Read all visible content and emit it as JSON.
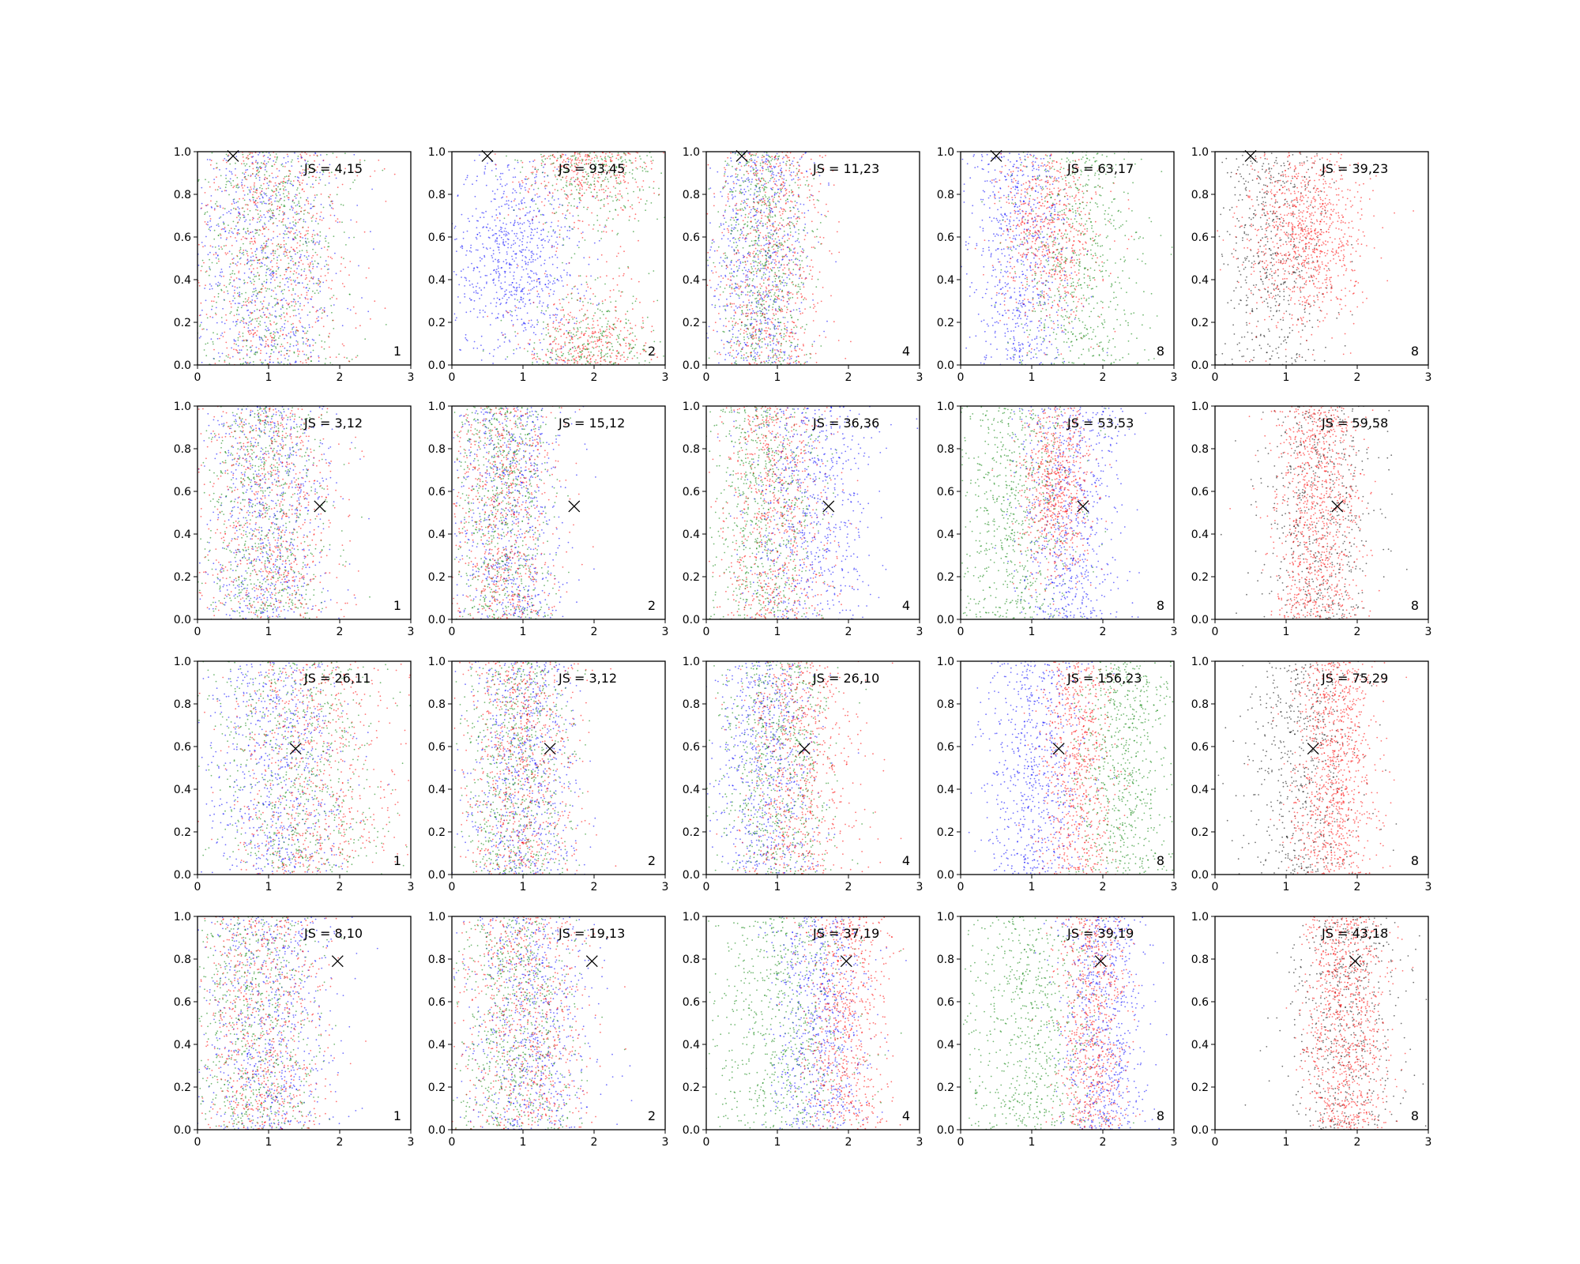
{
  "chart_data": {
    "type": "scatter",
    "layout": {
      "rows": 4,
      "cols": 5
    },
    "xlim": [
      0,
      3
    ],
    "ylim": [
      0,
      1
    ],
    "xticks": [
      "0",
      "1",
      "2",
      "3"
    ],
    "yticks": [
      "0.0",
      "0.2",
      "0.4",
      "0.6",
      "0.8",
      "1.0"
    ],
    "colors": {
      "blue": "#0000ff",
      "green": "#008000",
      "red": "#ff0000",
      "black": "#000000",
      "marker": "#000000"
    },
    "rows": [
      {
        "marker": {
          "x": 0.5,
          "y": 0.98
        },
        "panels": [
          {
            "js": "JS = 4,15",
            "k": "1",
            "clusters": [
              {
                "color": "blue",
                "cx": 0.95,
                "sx": 0.55,
                "weight": 1
              },
              {
                "color": "green",
                "cx": 1.0,
                "sx": 0.55,
                "weight": 1
              },
              {
                "color": "red",
                "cx": 1.05,
                "sx": 0.6,
                "weight": 1
              }
            ]
          },
          {
            "js": "JS = 93,45",
            "k": "2",
            "clusters": [
              {
                "color": "blue",
                "cx": 0.9,
                "sx": 0.45,
                "weight": 1.2,
                "ymode": "mid"
              },
              {
                "color": "red",
                "cx": 1.9,
                "sx": 0.45,
                "weight": 1,
                "ymode": "edges"
              },
              {
                "color": "green",
                "cx": 2.0,
                "sx": 0.5,
                "weight": 0.8,
                "ymode": "edges"
              }
            ]
          },
          {
            "js": "JS = 11,23",
            "k": "4",
            "clusters": [
              {
                "color": "blue",
                "cx": 0.75,
                "sx": 0.35,
                "weight": 1
              },
              {
                "color": "green",
                "cx": 0.8,
                "sx": 0.35,
                "weight": 1
              },
              {
                "color": "red",
                "cx": 0.9,
                "sx": 0.4,
                "weight": 1
              }
            ]
          },
          {
            "js": "JS = 63,17",
            "k": "8",
            "clusters": [
              {
                "color": "blue",
                "cx": 0.85,
                "sx": 0.35,
                "weight": 1
              },
              {
                "color": "red",
                "cx": 1.25,
                "sx": 0.35,
                "weight": 1,
                "ymode": "high"
              },
              {
                "color": "green",
                "cx": 1.7,
                "sx": 0.45,
                "weight": 0.9
              }
            ]
          },
          {
            "js": "JS = 39,23",
            "k": "8",
            "clusters": [
              {
                "color": "black",
                "cx": 0.8,
                "sx": 0.4,
                "weight": 0.8
              },
              {
                "color": "red",
                "cx": 1.25,
                "sx": 0.4,
                "weight": 1.4,
                "ymode": "high"
              }
            ]
          }
        ]
      },
      {
        "marker": {
          "x": 1.72,
          "y": 0.53
        },
        "panels": [
          {
            "js": "JS = 3,12",
            "k": "1",
            "clusters": [
              {
                "color": "blue",
                "cx": 1.0,
                "sx": 0.45,
                "weight": 1
              },
              {
                "color": "green",
                "cx": 0.9,
                "sx": 0.45,
                "weight": 1
              },
              {
                "color": "red",
                "cx": 1.0,
                "sx": 0.5,
                "weight": 1
              }
            ]
          },
          {
            "js": "JS = 15,12",
            "k": "2",
            "clusters": [
              {
                "color": "blue",
                "cx": 0.8,
                "sx": 0.4,
                "weight": 1
              },
              {
                "color": "green",
                "cx": 0.7,
                "sx": 0.35,
                "weight": 1
              },
              {
                "color": "red",
                "cx": 0.75,
                "sx": 0.4,
                "weight": 1
              }
            ]
          },
          {
            "js": "JS = 36,36",
            "k": "4",
            "clusters": [
              {
                "color": "green",
                "cx": 0.8,
                "sx": 0.4,
                "weight": 1
              },
              {
                "color": "red",
                "cx": 0.95,
                "sx": 0.4,
                "weight": 1
              },
              {
                "color": "blue",
                "cx": 1.45,
                "sx": 0.45,
                "weight": 1
              }
            ]
          },
          {
            "js": "JS = 53,53",
            "k": "8",
            "clusters": [
              {
                "color": "green",
                "cx": 0.75,
                "sx": 0.45,
                "weight": 1
              },
              {
                "color": "blue",
                "cx": 1.55,
                "sx": 0.35,
                "weight": 1
              },
              {
                "color": "red",
                "cx": 1.35,
                "sx": 0.25,
                "weight": 1,
                "ymode": "high"
              }
            ]
          },
          {
            "js": "JS = 59,58",
            "k": "8",
            "clusters": [
              {
                "color": "black",
                "cx": 1.45,
                "sx": 0.45,
                "weight": 0.8
              },
              {
                "color": "red",
                "cx": 1.45,
                "sx": 0.3,
                "weight": 1.4
              }
            ]
          }
        ]
      },
      {
        "marker": {
          "x": 1.38,
          "y": 0.59
        },
        "panels": [
          {
            "js": "JS = 26,11",
            "k": "1",
            "clusters": [
              {
                "color": "blue",
                "cx": 1.1,
                "sx": 0.5,
                "weight": 1
              },
              {
                "color": "red",
                "cx": 1.6,
                "sx": 0.6,
                "weight": 1
              },
              {
                "color": "green",
                "cx": 1.4,
                "sx": 0.6,
                "weight": 1
              }
            ]
          },
          {
            "js": "JS = 3,12",
            "k": "2",
            "clusters": [
              {
                "color": "blue",
                "cx": 0.95,
                "sx": 0.4,
                "weight": 1
              },
              {
                "color": "green",
                "cx": 0.9,
                "sx": 0.4,
                "weight": 1
              },
              {
                "color": "red",
                "cx": 1.0,
                "sx": 0.4,
                "weight": 1
              }
            ]
          },
          {
            "js": "JS = 26,10",
            "k": "4",
            "clusters": [
              {
                "color": "blue",
                "cx": 0.85,
                "sx": 0.35,
                "weight": 1
              },
              {
                "color": "green",
                "cx": 1.0,
                "sx": 0.4,
                "weight": 1
              },
              {
                "color": "red",
                "cx": 1.3,
                "sx": 0.4,
                "weight": 1
              }
            ]
          },
          {
            "js": "JS = 156,23",
            "k": "8",
            "clusters": [
              {
                "color": "blue",
                "cx": 1.05,
                "sx": 0.35,
                "weight": 1
              },
              {
                "color": "red",
                "cx": 1.65,
                "sx": 0.25,
                "weight": 1
              },
              {
                "color": "green",
                "cx": 2.3,
                "sx": 0.35,
                "weight": 1
              }
            ]
          },
          {
            "js": "JS = 75,29",
            "k": "8",
            "clusters": [
              {
                "color": "black",
                "cx": 1.2,
                "sx": 0.4,
                "weight": 0.8
              },
              {
                "color": "red",
                "cx": 1.7,
                "sx": 0.3,
                "weight": 1.4
              }
            ]
          }
        ]
      },
      {
        "marker": {
          "x": 1.97,
          "y": 0.79
        },
        "panels": [
          {
            "js": "JS = 8,10",
            "k": "1",
            "clusters": [
              {
                "color": "blue",
                "cx": 1.0,
                "sx": 0.45,
                "weight": 1
              },
              {
                "color": "green",
                "cx": 0.8,
                "sx": 0.45,
                "weight": 1
              },
              {
                "color": "red",
                "cx": 0.9,
                "sx": 0.45,
                "weight": 1
              }
            ]
          },
          {
            "js": "JS = 19,13",
            "k": "2",
            "clusters": [
              {
                "color": "blue",
                "cx": 1.1,
                "sx": 0.45,
                "weight": 1
              },
              {
                "color": "green",
                "cx": 0.9,
                "sx": 0.45,
                "weight": 1
              },
              {
                "color": "red",
                "cx": 1.0,
                "sx": 0.45,
                "weight": 1
              }
            ]
          },
          {
            "js": "JS = 37,19",
            "k": "4",
            "clusters": [
              {
                "color": "green",
                "cx": 1.1,
                "sx": 0.5,
                "weight": 1
              },
              {
                "color": "blue",
                "cx": 1.6,
                "sx": 0.35,
                "weight": 1
              },
              {
                "color": "red",
                "cx": 1.95,
                "sx": 0.3,
                "weight": 1
              }
            ]
          },
          {
            "js": "JS = 39,19",
            "k": "8",
            "clusters": [
              {
                "color": "green",
                "cx": 1.0,
                "sx": 0.5,
                "weight": 1
              },
              {
                "color": "blue",
                "cx": 2.0,
                "sx": 0.3,
                "weight": 1
              },
              {
                "color": "red",
                "cx": 1.85,
                "sx": 0.25,
                "weight": 1
              }
            ]
          },
          {
            "js": "JS = 43,18",
            "k": "8",
            "clusters": [
              {
                "color": "black",
                "cx": 1.85,
                "sx": 0.4,
                "weight": 0.8
              },
              {
                "color": "red",
                "cx": 1.85,
                "sx": 0.3,
                "weight": 1.4
              }
            ]
          }
        ]
      }
    ]
  }
}
